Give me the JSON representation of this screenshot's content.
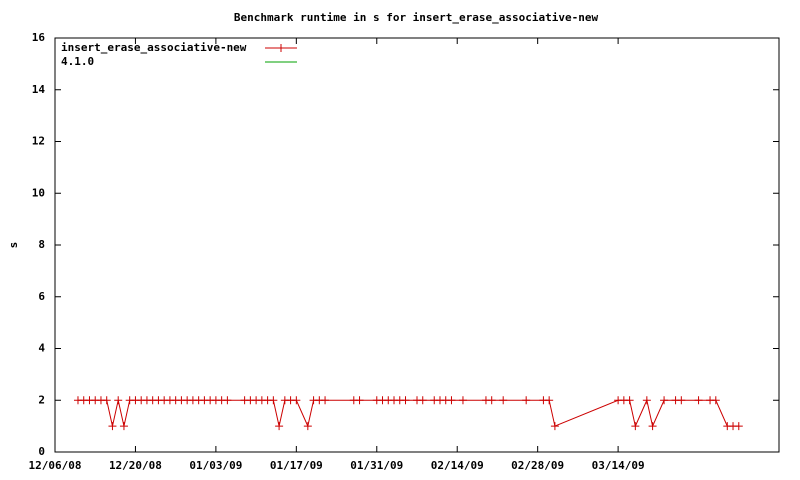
{
  "chart_data": {
    "type": "line",
    "title": "Benchmark runtime in s for insert_erase_associative-new",
    "y_label": "s",
    "xlim": [
      "12/06/08",
      "04/11/09"
    ],
    "xticks": [
      "12/06/08",
      "12/20/08",
      "01/03/09",
      "01/17/09",
      "01/31/09",
      "02/14/09",
      "02/28/09",
      "03/14/09"
    ],
    "ylim": [
      0,
      16
    ],
    "yticks": [
      0,
      2,
      4,
      6,
      8,
      10,
      12,
      14,
      16
    ],
    "legend": "top-left",
    "series": [
      {
        "name": "insert_erase_associative-new",
        "color": "#cc0000",
        "marker": "plus",
        "x": [
          "12/10/08",
          "12/11/08",
          "12/12/08",
          "12/13/08",
          "12/14/08",
          "12/15/08",
          "12/16/08",
          "12/17/08",
          "12/18/08",
          "12/19/08",
          "12/20/08",
          "12/21/08",
          "12/22/08",
          "12/23/08",
          "12/24/08",
          "12/25/08",
          "12/26/08",
          "12/27/08",
          "12/28/08",
          "12/29/08",
          "12/30/08",
          "12/31/08",
          "01/01/09",
          "01/02/09",
          "01/03/09",
          "01/04/09",
          "01/05/09",
          "01/08/09",
          "01/09/09",
          "01/10/09",
          "01/11/09",
          "01/12/09",
          "01/13/09",
          "01/14/09",
          "01/15/09",
          "01/16/09",
          "01/17/09",
          "01/19/09",
          "01/20/09",
          "01/21/09",
          "01/22/09",
          "01/27/09",
          "01/28/09",
          "01/31/09",
          "02/01/09",
          "02/02/09",
          "02/03/09",
          "02/04/09",
          "02/05/09",
          "02/07/09",
          "02/08/09",
          "02/10/09",
          "02/11/09",
          "02/12/09",
          "02/13/09",
          "02/15/09",
          "02/19/09",
          "02/20/09",
          "02/22/09",
          "02/26/09",
          "03/01/09",
          "03/02/09",
          "03/03/09",
          "03/14/09",
          "03/15/09",
          "03/16/09",
          "03/17/09",
          "03/19/09",
          "03/20/09",
          "03/22/09",
          "03/24/09",
          "03/25/09",
          "03/28/09",
          "03/30/09",
          "03/31/09",
          "04/02/09",
          "04/03/09",
          "04/04/09"
        ],
        "values": [
          2,
          2,
          2,
          2,
          2,
          2,
          1,
          2,
          1,
          2,
          2,
          2,
          2,
          2,
          2,
          2,
          2,
          2,
          2,
          2,
          2,
          2,
          2,
          2,
          2,
          2,
          2,
          2,
          2,
          2,
          2,
          2,
          2,
          1,
          2,
          2,
          2,
          1,
          2,
          2,
          2,
          2,
          2,
          2,
          2,
          2,
          2,
          2,
          2,
          2,
          2,
          2,
          2,
          2,
          2,
          2,
          2,
          2,
          2,
          2,
          2,
          2,
          1,
          2,
          2,
          2,
          1,
          2,
          1,
          2,
          2,
          2,
          2,
          2,
          2,
          1,
          1,
          1
        ]
      },
      {
        "name": "4.1.0",
        "color": "#00a000",
        "x": [],
        "values": []
      }
    ]
  }
}
